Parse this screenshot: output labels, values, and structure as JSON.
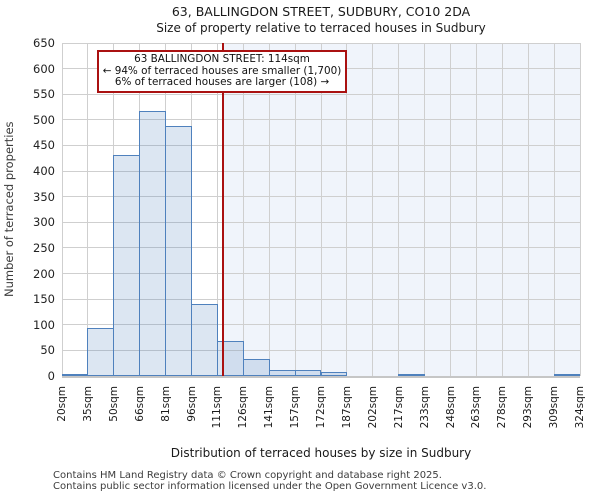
{
  "title": "63, BALLINGDON STREET, SUDBURY, CO10 2DA",
  "subtitle": "Size of property relative to terraced houses in Sudbury",
  "annotation": {
    "line1": "63 BALLINGDON STREET: 114sqm",
    "line2": "← 94% of terraced houses are smaller (1,700)",
    "line3": "6% of terraced houses are larger (108) →"
  },
  "footer": {
    "line1": "Contains HM Land Registry data © Crown copyright and database right 2025.",
    "line2": "Contains public sector information licensed under the Open Government Licence v3.0."
  },
  "chart_data": {
    "type": "bar",
    "title": "63, BALLINGDON STREET, SUDBURY, CO10 2DA",
    "subtitle": "Size of property relative to terraced houses in Sudbury",
    "xlabel": "Distribution of terraced houses by size in Sudbury",
    "ylabel": "Number of terraced properties",
    "ylim": [
      0,
      650
    ],
    "y_ticks": [
      0,
      50,
      100,
      150,
      200,
      250,
      300,
      350,
      400,
      450,
      500,
      550,
      600,
      650
    ],
    "x_tick_labels": [
      "20sqm",
      "35sqm",
      "50sqm",
      "66sqm",
      "81sqm",
      "96sqm",
      "111sqm",
      "126sqm",
      "141sqm",
      "157sqm",
      "172sqm",
      "187sqm",
      "202sqm",
      "217sqm",
      "233sqm",
      "248sqm",
      "263sqm",
      "278sqm",
      "293sqm",
      "309sqm",
      "324sqm"
    ],
    "bin_edges_sqm": [
      20,
      35,
      50,
      66,
      81,
      96,
      111,
      126,
      141,
      157,
      172,
      187,
      202,
      217,
      233,
      248,
      263,
      278,
      293,
      309,
      324
    ],
    "values": [
      4,
      93,
      432,
      517,
      488,
      141,
      68,
      33,
      12,
      12,
      8,
      0,
      0,
      4,
      0,
      0,
      0,
      0,
      0,
      3
    ],
    "marker_value_sqm": 114,
    "marker_label": "63 BALLINGDON STREET: 114sqm",
    "smaller_pct": "94%",
    "smaller_count": "1,700",
    "larger_pct": "6%",
    "larger_count": "108",
    "grid": true,
    "legend_position": "none",
    "colors": {
      "bar_fill": "rgba(79,129,189,0.2)",
      "bar_border": "#4f81bd",
      "marker_line": "#aa1111",
      "annotation_border": "#aa1111",
      "shade_right_of_marker": "#f0f4fb",
      "grid": "#cfcfcf",
      "baseline": "#c6c6c6"
    }
  }
}
